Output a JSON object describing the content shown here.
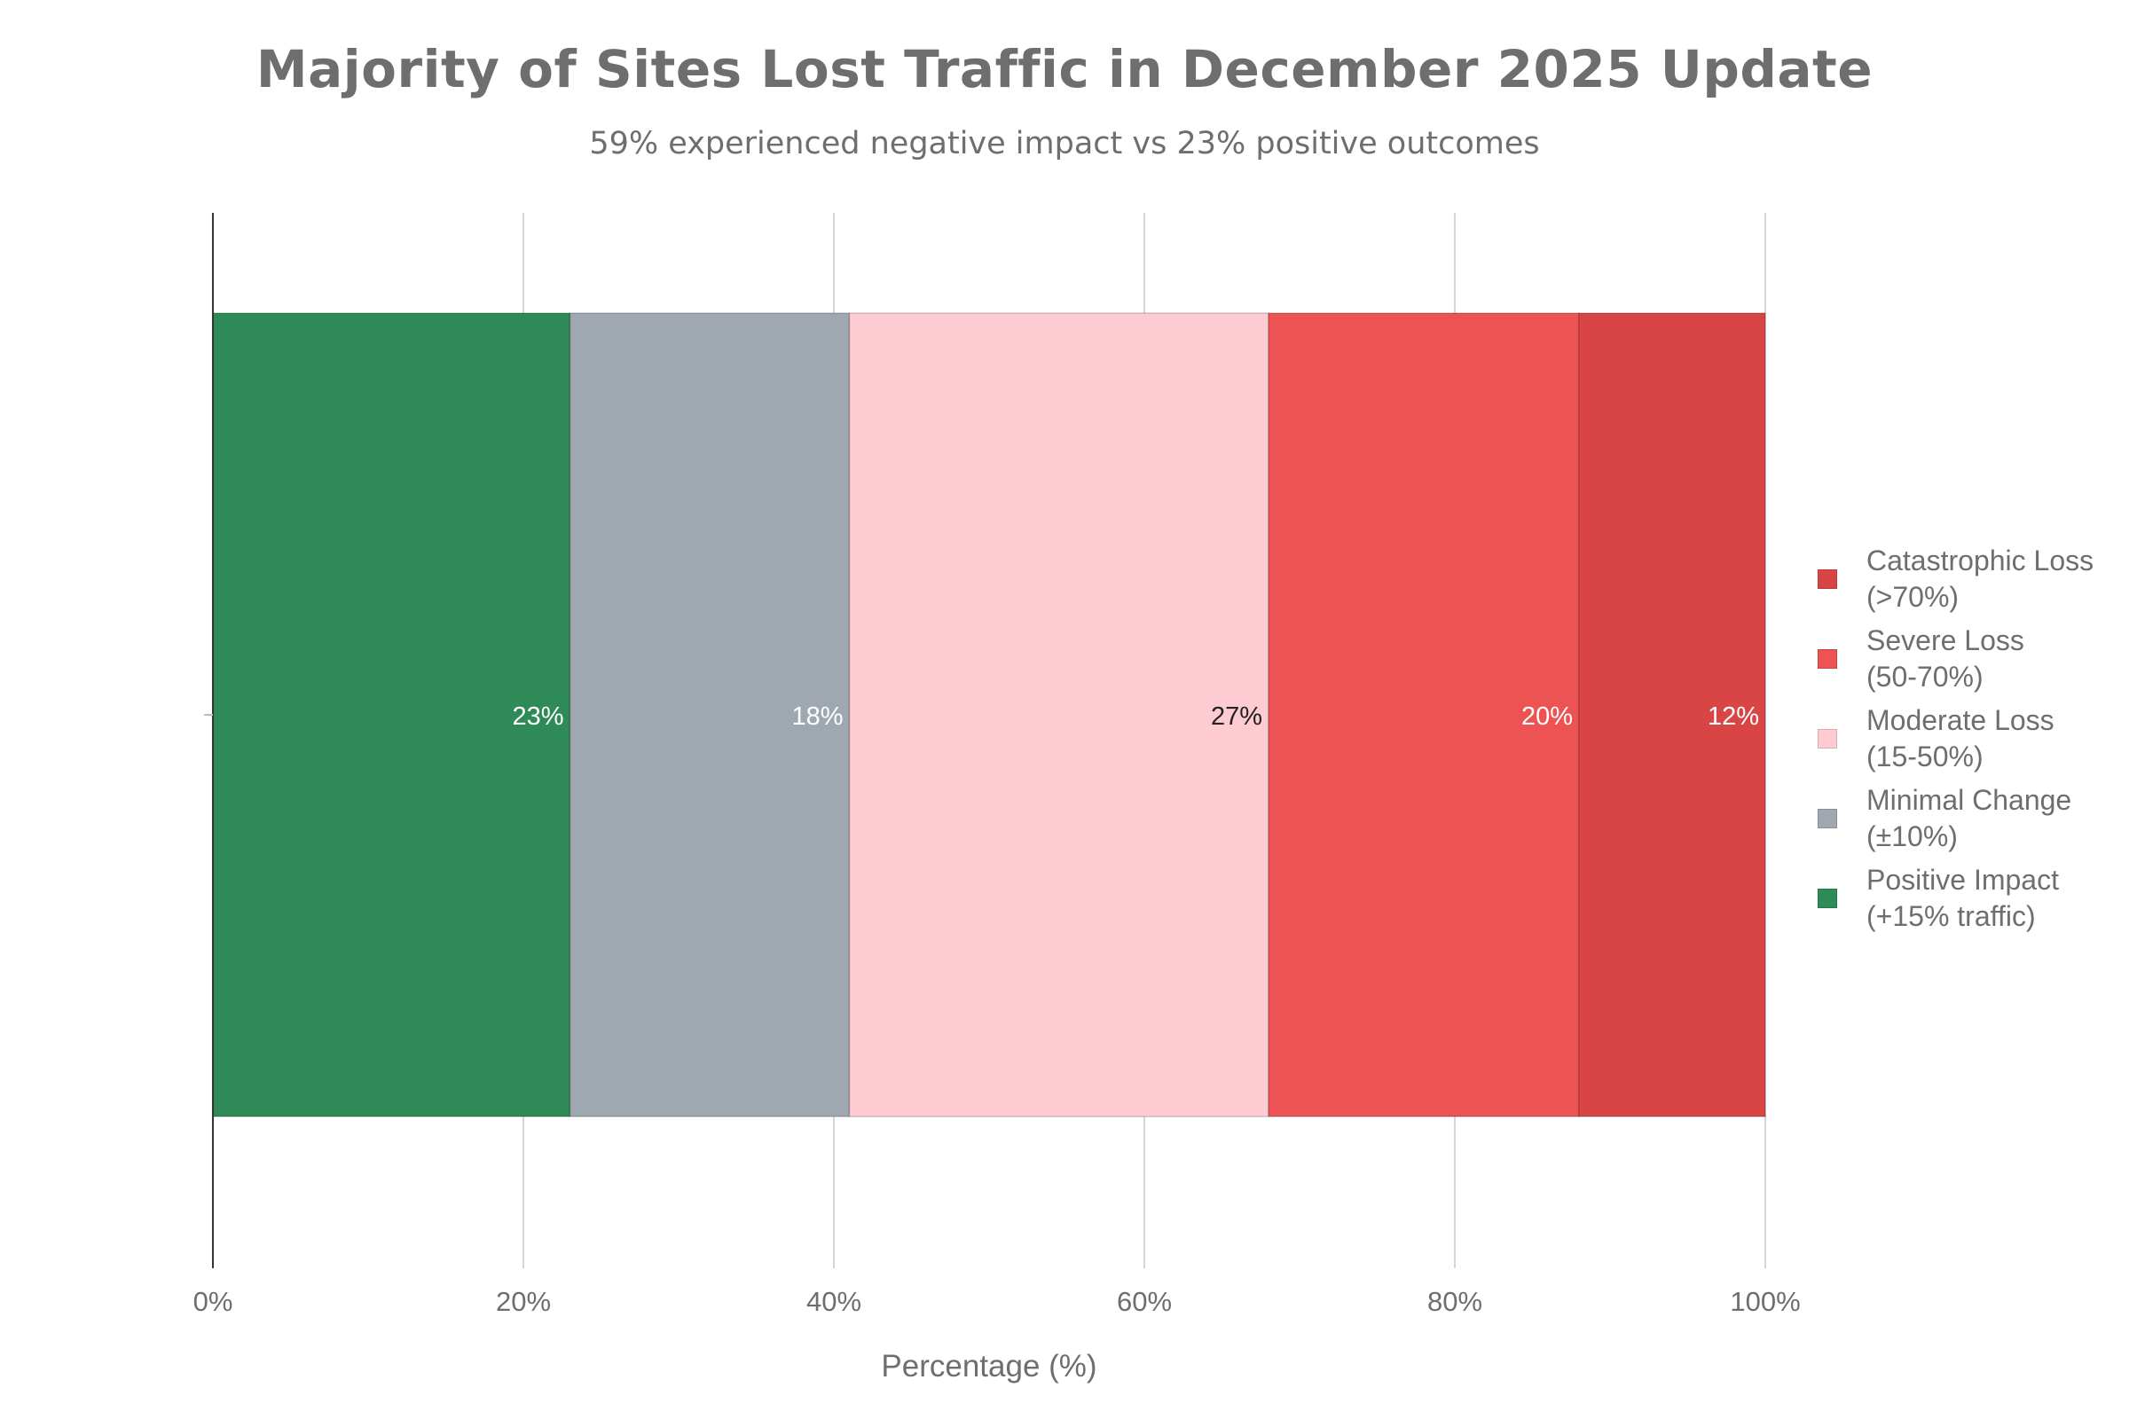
{
  "chart_data": {
    "type": "bar",
    "orientation": "horizontal",
    "stacked": true,
    "title": "Majority of Sites Lost Traffic in December 2025 Update",
    "subtitle": "59% experienced negative impact vs 23% positive outcomes",
    "xlabel": "Percentage (%)",
    "ylabel": "",
    "xlim": [
      0,
      100
    ],
    "x_ticks": [
      "0%",
      "20%",
      "40%",
      "60%",
      "80%",
      "100%"
    ],
    "grid": "vertical",
    "legend_position": "right",
    "series": [
      {
        "name": "Positive Impact (+15% traffic)",
        "value": 23,
        "label": "23%",
        "color": "#2e8a57",
        "label_color": "#ffffff"
      },
      {
        "name": "Minimal Change (±10%)",
        "value": 18,
        "label": "18%",
        "color": "#9fa8b0",
        "label_color": "#ffffff"
      },
      {
        "name": "Moderate Loss (15-50%)",
        "value": 27,
        "label": "27%",
        "color": "#fecbd3",
        "label_color": "#222222"
      },
      {
        "name": "Severe Loss (50-70%)",
        "value": 20,
        "label": "20%",
        "color": "#ec5352",
        "label_color": "#ffffff"
      },
      {
        "name": "Catastrophic Loss (>70%)",
        "value": 12,
        "label": "12%",
        "color": "#d94545",
        "label_color": "#ffffff"
      }
    ],
    "legend": [
      {
        "label": "Catastrophic Loss\n(>70%)",
        "color": "#d94545"
      },
      {
        "label": "Severe Loss\n(50-70%)",
        "color": "#ec5352"
      },
      {
        "label": "Moderate Loss\n(15-50%)",
        "color": "#fecbd3"
      },
      {
        "label": "Minimal Change\n(±10%)",
        "color": "#9fa8b0"
      },
      {
        "label": "Positive Impact\n(+15% traffic)",
        "color": "#2e8a57"
      }
    ]
  }
}
